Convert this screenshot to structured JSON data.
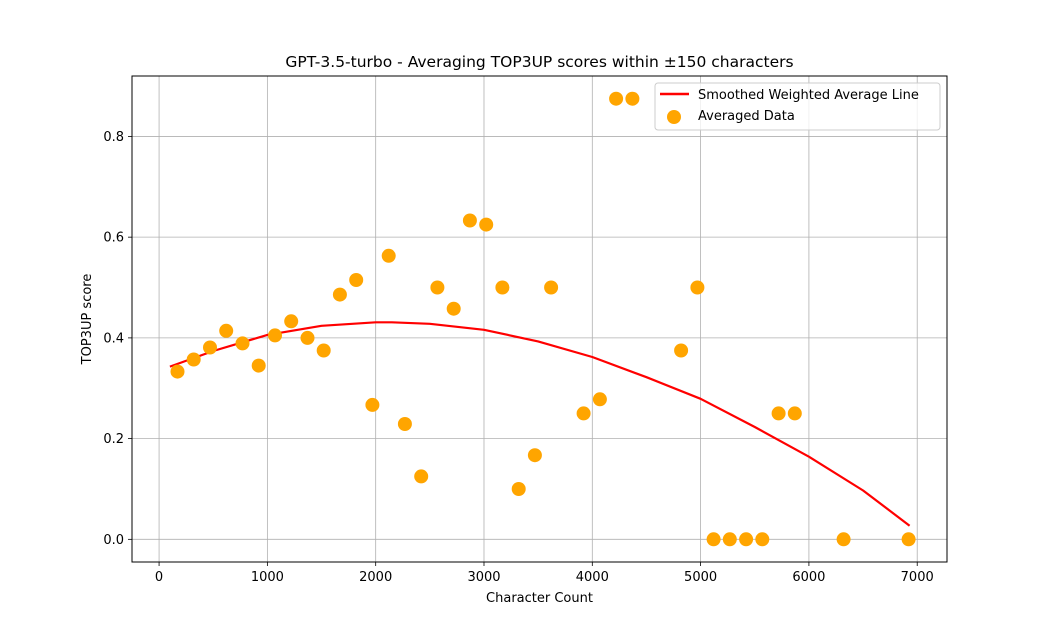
{
  "chart_data": {
    "type": "scatter",
    "title": "GPT-3.5-turbo - Averaging TOP3UP scores within ±150 characters",
    "xlabel": "Character Count",
    "ylabel": "TOP3UP score",
    "xlim": [
      -250,
      7275
    ],
    "ylim": [
      -0.045,
      0.92
    ],
    "xticks": [
      0,
      1000,
      2000,
      3000,
      4000,
      5000,
      6000,
      7000
    ],
    "yticks": [
      0.0,
      0.2,
      0.4,
      0.6,
      0.8
    ],
    "xtick_labels": [
      "0",
      "1000",
      "2000",
      "3000",
      "4000",
      "5000",
      "6000",
      "7000"
    ],
    "ytick_labels": [
      "0.0",
      "0.2",
      "0.4",
      "0.6",
      "0.8"
    ],
    "grid": true,
    "legend_position": "top-right",
    "series": [
      {
        "name": "Smoothed Weighted Average Line",
        "kind": "line",
        "color": "#ff0000",
        "x": [
          100,
          500,
          1000,
          1500,
          2000,
          2150,
          2500,
          3000,
          3500,
          4000,
          4500,
          5000,
          5500,
          6000,
          6500,
          6930
        ],
        "y": [
          0.343,
          0.374,
          0.406,
          0.424,
          0.431,
          0.431,
          0.428,
          0.416,
          0.393,
          0.362,
          0.322,
          0.279,
          0.223,
          0.164,
          0.097,
          0.027
        ]
      },
      {
        "name": "Averaged Data",
        "kind": "scatter",
        "color": "#ffa500",
        "x": [
          170,
          320,
          470,
          620,
          770,
          920,
          1070,
          1220,
          1370,
          1520,
          1670,
          1820,
          1970,
          2120,
          2270,
          2420,
          2570,
          2720,
          2870,
          3020,
          3170,
          3320,
          3470,
          3620,
          3920,
          4070,
          4220,
          4370,
          4820,
          4970,
          5120,
          5270,
          5420,
          5570,
          5720,
          5870,
          6320,
          6920
        ],
        "y": [
          0.333,
          0.357,
          0.381,
          0.414,
          0.389,
          0.345,
          0.405,
          0.433,
          0.4,
          0.375,
          0.486,
          0.515,
          0.267,
          0.563,
          0.229,
          0.125,
          0.5,
          0.458,
          0.633,
          0.625,
          0.5,
          0.1,
          0.167,
          0.5,
          0.25,
          0.278,
          0.875,
          0.875,
          0.375,
          0.5,
          0.0,
          0.0,
          0.0,
          0.0,
          0.25,
          0.25,
          0.0,
          0.0
        ]
      }
    ]
  }
}
